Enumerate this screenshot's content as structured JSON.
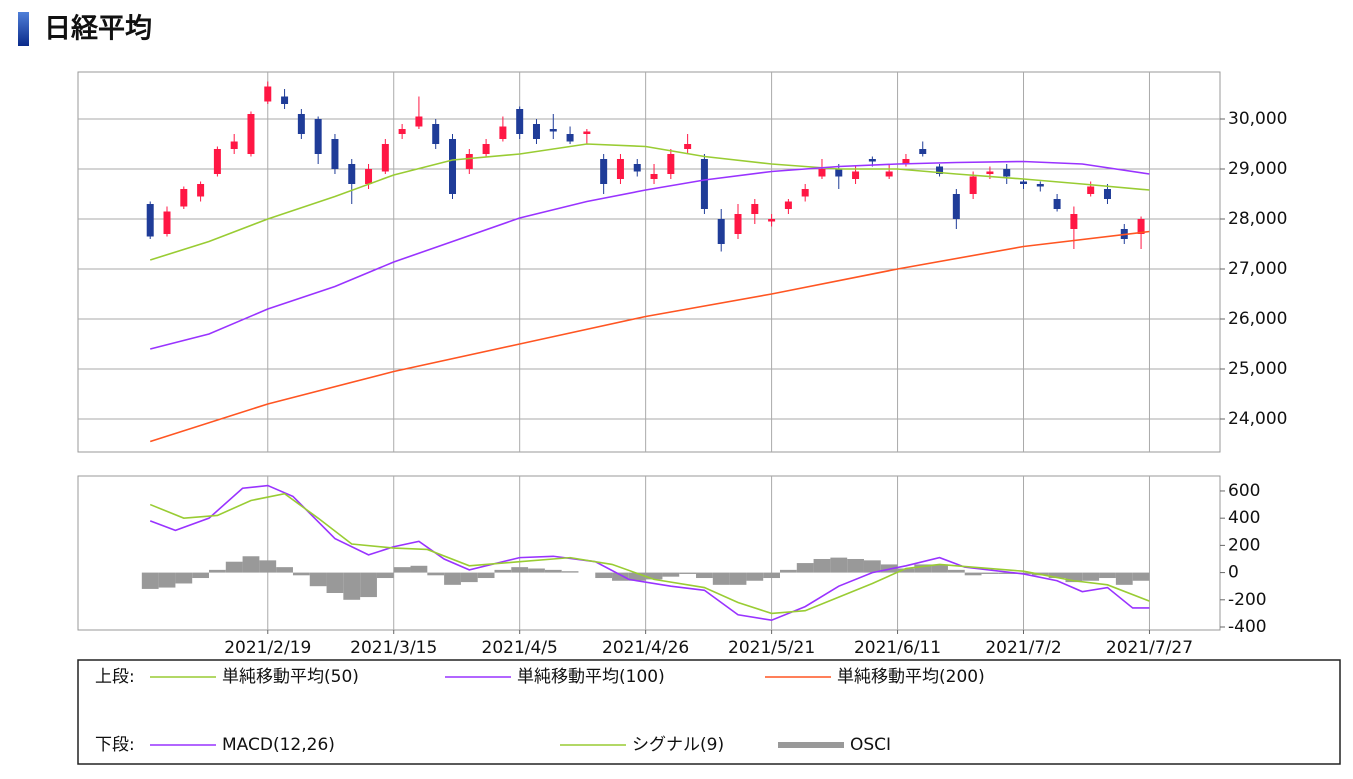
{
  "header": {
    "title": "日経平均"
  },
  "chart_data": [
    {
      "type": "candlestick",
      "legend_title": "上段:",
      "up_color": "#ff1744",
      "down_color": "#1f3c98",
      "x": [
        0,
        2,
        4,
        6,
        8,
        10,
        12,
        14,
        16,
        18,
        20,
        22,
        24,
        26,
        28,
        30,
        32,
        34,
        36,
        38,
        40,
        42,
        44,
        46,
        48,
        50,
        52,
        54,
        56,
        58,
        60,
        62,
        64,
        66,
        68,
        70,
        72,
        74,
        76,
        78,
        80,
        82,
        84,
        86,
        88,
        90,
        92,
        94,
        96,
        98,
        100,
        102,
        104,
        106,
        108,
        110,
        112,
        114,
        116,
        118
      ],
      "open": [
        28300,
        27700,
        28250,
        28450,
        28900,
        29400,
        29300,
        30350,
        30450,
        30100,
        30000,
        29600,
        29100,
        28700,
        28950,
        29700,
        29850,
        29900,
        29600,
        29000,
        29300,
        29600,
        30200,
        29900,
        29800,
        29700,
        29700,
        29200,
        28800,
        29100,
        28800,
        28900,
        29400,
        29200,
        28000,
        27700,
        28100,
        27950,
        28200,
        28450,
        28850,
        29000,
        28800,
        29200,
        28850,
        29100,
        29400,
        29050,
        28500,
        28500,
        28900,
        29000,
        28750,
        28700,
        28400,
        27800,
        28500,
        28600,
        27800,
        27700
      ],
      "high": [
        28350,
        28250,
        28650,
        28750,
        29450,
        29700,
        30150,
        30750,
        30600,
        30200,
        30050,
        29700,
        29200,
        29100,
        29600,
        29900,
        30450,
        30000,
        29700,
        29400,
        29600,
        30050,
        30250,
        30000,
        30100,
        29850,
        29800,
        29300,
        29300,
        29200,
        29100,
        29400,
        29700,
        29300,
        28200,
        28300,
        28400,
        28100,
        28400,
        28700,
        29200,
        29100,
        29050,
        29250,
        29100,
        29300,
        29550,
        29100,
        28600,
        28950,
        29050,
        29100,
        28800,
        28750,
        28500,
        28250,
        28750,
        28700,
        27900,
        28050
      ],
      "low": [
        27600,
        27650,
        28200,
        28350,
        28850,
        29300,
        29250,
        30300,
        30200,
        29600,
        29100,
        28900,
        28300,
        28600,
        28900,
        29600,
        29800,
        29400,
        28400,
        28900,
        29250,
        29550,
        29600,
        29500,
        29600,
        29500,
        29500,
        28500,
        28700,
        28850,
        28700,
        28800,
        29300,
        28100,
        27350,
        27600,
        27900,
        27850,
        28100,
        28350,
        28800,
        28600,
        28700,
        29050,
        28800,
        29050,
        29250,
        28850,
        27800,
        28400,
        28800,
        28700,
        28600,
        28550,
        28150,
        27400,
        28450,
        28300,
        27500,
        27400
      ],
      "close": [
        27650,
        28150,
        28600,
        28700,
        29400,
        29550,
        30100,
        30650,
        30300,
        29700,
        29300,
        29000,
        28700,
        29000,
        29500,
        29800,
        30050,
        29500,
        28500,
        29300,
        29500,
        29850,
        29700,
        29600,
        29750,
        29550,
        29750,
        28700,
        29200,
        28950,
        28900,
        29300,
        29500,
        28200,
        27500,
        28100,
        28300,
        28000,
        28350,
        28600,
        29000,
        28850,
        28950,
        29150,
        28950,
        29200,
        29300,
        28900,
        28000,
        28850,
        28950,
        28850,
        28700,
        28650,
        28200,
        28100,
        28650,
        28400,
        27600,
        28000
      ],
      "xlim": [
        -8.6,
        127.4
      ],
      "ylim": [
        23340,
        30940
      ],
      "yticks": [
        {
          "value": 24000,
          "label": "24,000"
        },
        {
          "value": 25000,
          "label": "25,000"
        },
        {
          "value": 26000,
          "label": "26,000"
        },
        {
          "value": 27000,
          "label": "27,000"
        },
        {
          "value": 28000,
          "label": "28,000"
        },
        {
          "value": 29000,
          "label": "29,000"
        },
        {
          "value": 30000,
          "label": "30,000"
        }
      ],
      "grid": true,
      "series": [
        {
          "name": "単純移動平均(50)",
          "color": "#99cc33",
          "x": [
            0,
            7,
            14,
            22,
            29,
            36,
            44,
            52,
            59,
            66,
            74,
            82,
            89,
            96,
            104,
            111,
            119
          ],
          "values": [
            27180,
            27550,
            28000,
            28450,
            28880,
            29180,
            29300,
            29500,
            29450,
            29250,
            29100,
            29000,
            29000,
            28900,
            28800,
            28700,
            28580
          ]
        },
        {
          "name": "単純移動平均(100)",
          "color": "#9933ff",
          "x": [
            0,
            7,
            14,
            22,
            29,
            36,
            44,
            52,
            59,
            66,
            74,
            82,
            89,
            96,
            104,
            111,
            119
          ],
          "values": [
            25400,
            25700,
            26200,
            26650,
            27140,
            27550,
            28020,
            28350,
            28580,
            28780,
            28950,
            29050,
            29100,
            29130,
            29150,
            29100,
            28900
          ]
        },
        {
          "name": "単純移動平均(200)",
          "color": "#ff5522",
          "x": [
            0,
            14,
            29,
            44,
            59,
            74,
            89,
            104,
            119
          ],
          "values": [
            23550,
            24300,
            24950,
            25500,
            26050,
            26500,
            27000,
            27450,
            27750
          ]
        }
      ]
    },
    {
      "type": "combo",
      "legend_title": "下段:",
      "xlim": [
        -8.6,
        127.4
      ],
      "ylim": [
        -422,
        710
      ],
      "yticks": [
        -400,
        -200,
        0,
        200,
        400,
        600
      ],
      "xticks": [
        {
          "value": 14,
          "label": "2021/2/19"
        },
        {
          "value": 29,
          "label": "2021/3/15"
        },
        {
          "value": 44,
          "label": "2021/4/5"
        },
        {
          "value": 59,
          "label": "2021/4/26"
        },
        {
          "value": 74,
          "label": "2021/5/21"
        },
        {
          "value": 89,
          "label": "2021/6/11"
        },
        {
          "value": 104,
          "label": "2021/7/2"
        },
        {
          "value": 119,
          "label": "2021/7/27"
        }
      ],
      "grid": true,
      "series": [
        {
          "name": "MACD(12,26)",
          "kind": "line",
          "color": "#9933ff",
          "x": [
            0,
            3,
            7,
            11,
            14,
            17,
            22,
            26,
            29,
            32,
            35,
            38,
            44,
            48,
            53,
            57,
            62,
            66,
            70,
            74,
            78,
            82,
            86,
            90,
            94,
            97,
            104,
            108,
            111,
            114,
            117,
            119
          ],
          "values": [
            380,
            310,
            400,
            620,
            640,
            560,
            250,
            130,
            190,
            230,
            100,
            20,
            110,
            120,
            80,
            -50,
            -100,
            -130,
            -310,
            -350,
            -250,
            -100,
            0,
            50,
            110,
            40,
            -10,
            -60,
            -140,
            -110,
            -260,
            -260
          ]
        },
        {
          "name": "シグナル(9)",
          "kind": "line",
          "color": "#99cc33",
          "x": [
            0,
            4,
            8,
            12,
            16,
            20,
            24,
            29,
            33,
            38,
            44,
            50,
            55,
            60,
            66,
            70,
            74,
            78,
            82,
            86,
            90,
            94,
            98,
            104,
            110,
            114,
            119
          ],
          "values": [
            500,
            400,
            420,
            530,
            580,
            400,
            210,
            180,
            170,
            50,
            80,
            110,
            60,
            -50,
            -110,
            -220,
            -300,
            -280,
            -180,
            -80,
            30,
            60,
            40,
            10,
            -60,
            -90,
            -210
          ]
        },
        {
          "name": "OSCI",
          "kind": "bar",
          "color": "#999999",
          "x": [
            0,
            2,
            4,
            6,
            8,
            10,
            12,
            14,
            16,
            18,
            20,
            22,
            24,
            26,
            28,
            30,
            32,
            34,
            36,
            38,
            40,
            42,
            44,
            46,
            48,
            50,
            52,
            54,
            56,
            58,
            60,
            62,
            64,
            66,
            68,
            70,
            72,
            74,
            76,
            78,
            80,
            82,
            84,
            86,
            88,
            90,
            92,
            94,
            96,
            98,
            100,
            102,
            104,
            106,
            108,
            110,
            112,
            114,
            116,
            118
          ],
          "values": [
            -120,
            -110,
            -80,
            -40,
            20,
            80,
            120,
            90,
            40,
            -20,
            -100,
            -150,
            -200,
            -180,
            -40,
            40,
            50,
            -20,
            -90,
            -70,
            -40,
            20,
            40,
            30,
            20,
            10,
            0,
            -40,
            -60,
            -60,
            -50,
            -30,
            -10,
            -40,
            -90,
            -90,
            -60,
            -40,
            20,
            70,
            100,
            110,
            100,
            90,
            60,
            30,
            60,
            60,
            20,
            -20,
            -10,
            -10,
            -10,
            -20,
            -40,
            -70,
            -60,
            -40,
            -90,
            -60
          ]
        }
      ]
    }
  ]
}
